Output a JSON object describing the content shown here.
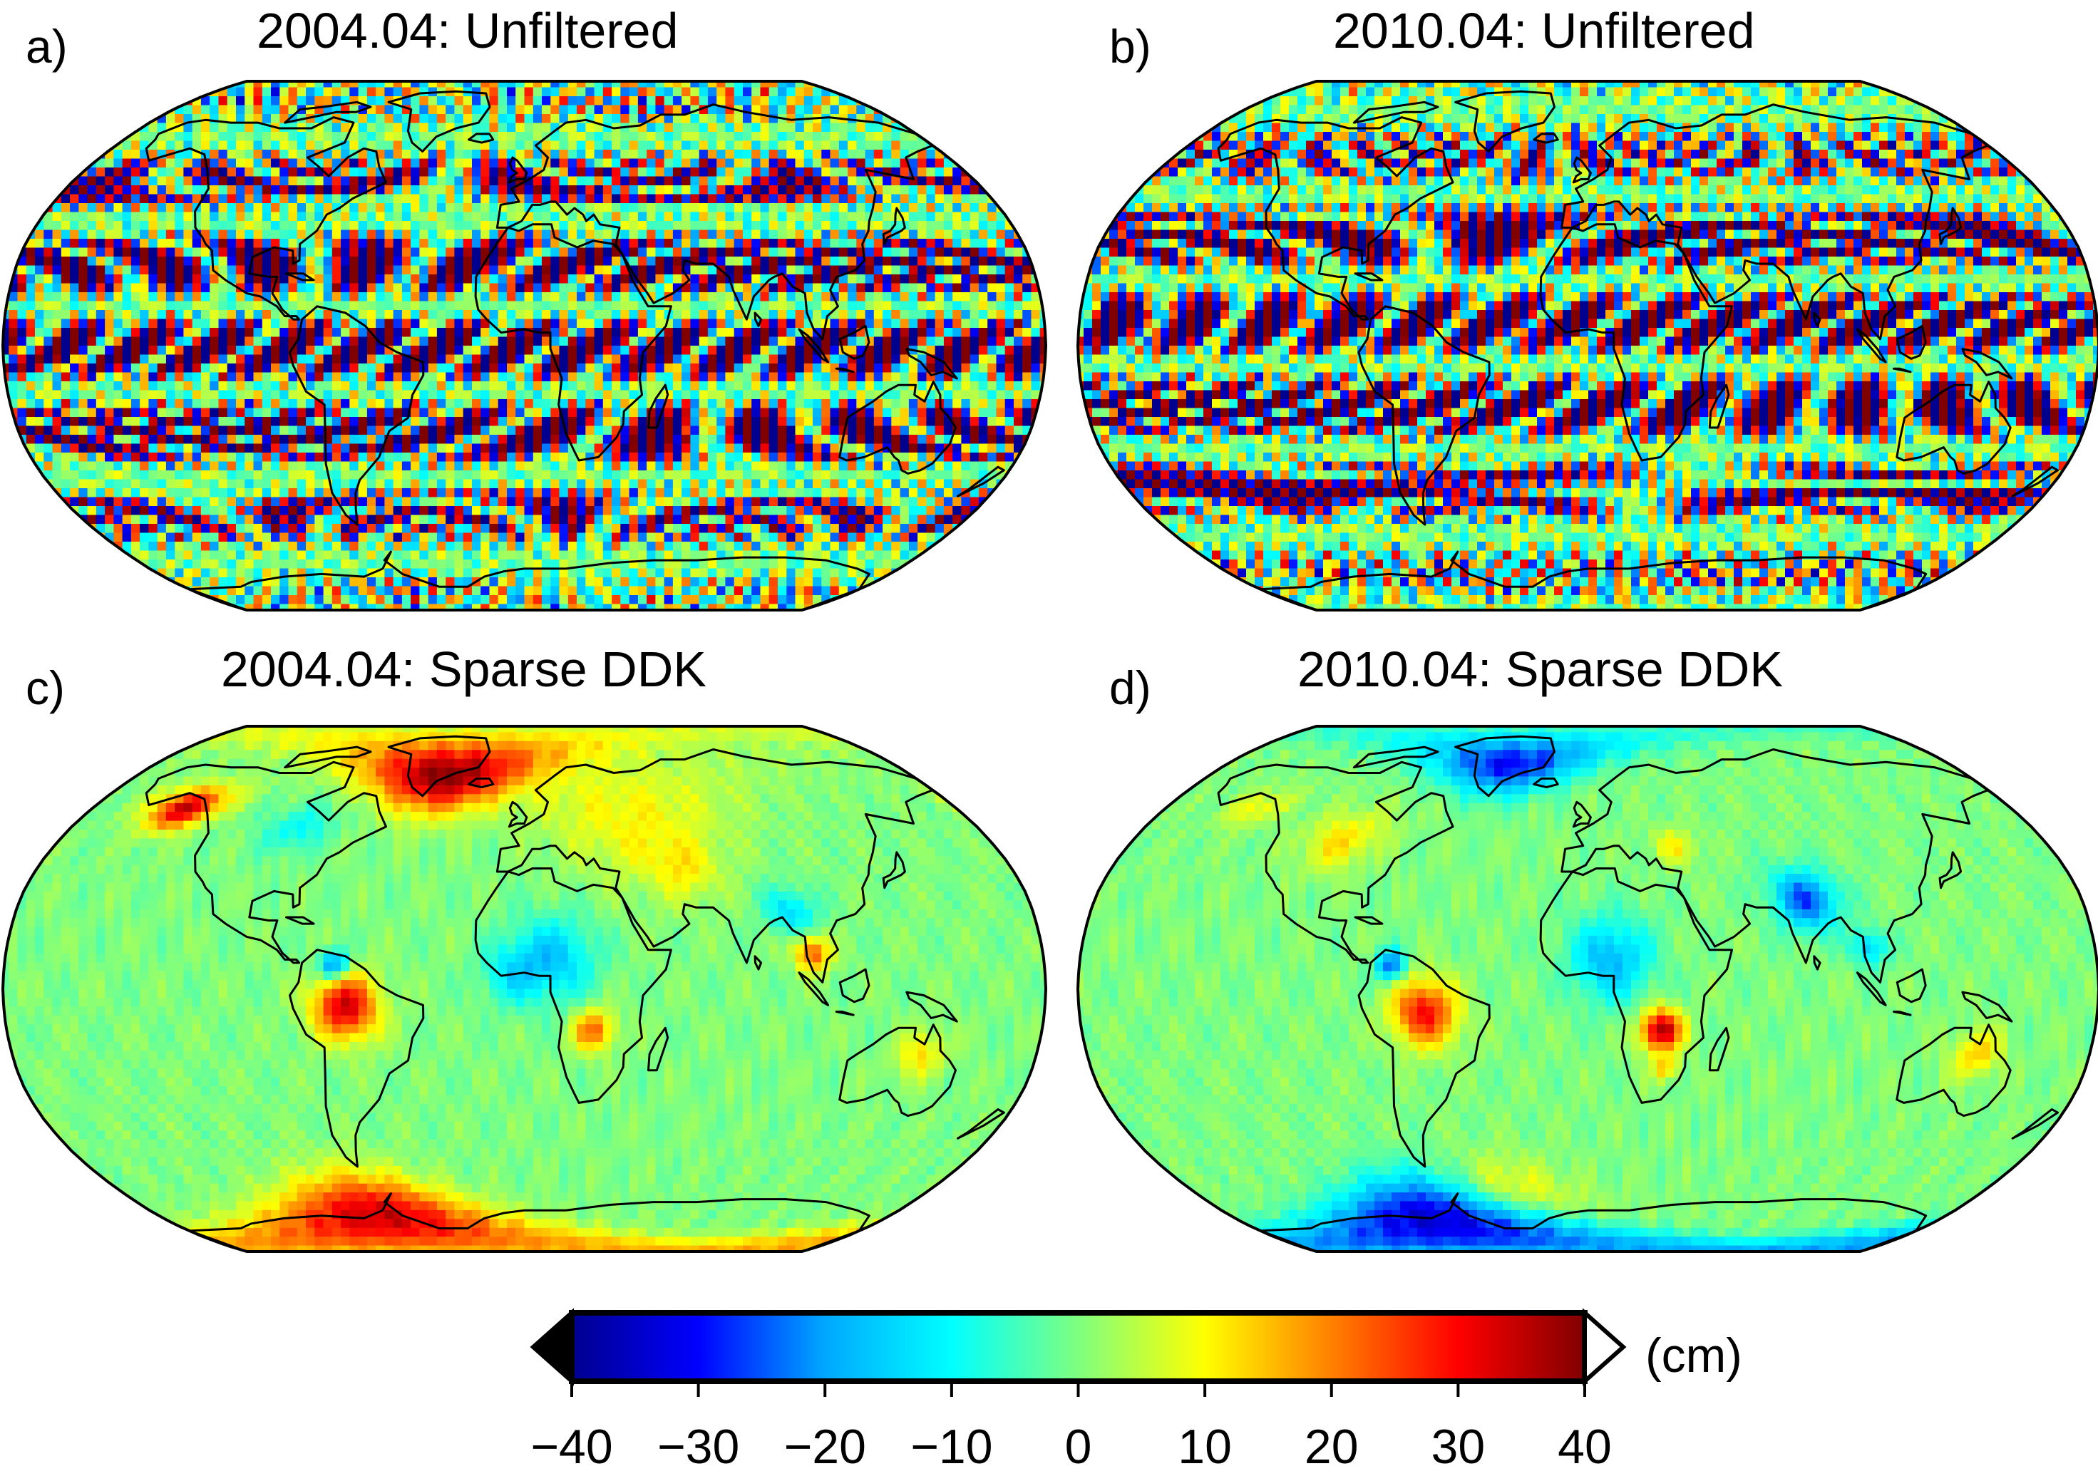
{
  "panels": [
    {
      "letter": "a)",
      "title": "2004.04: Unfiltered",
      "mode": "unfiltered",
      "seed": 3
    },
    {
      "letter": "b)",
      "title": "2010.04: Unfiltered",
      "mode": "unfiltered",
      "seed": 7
    },
    {
      "letter": "c)",
      "title": "2004.04: Sparse DDK",
      "mode": "filtered",
      "seed": 11
    },
    {
      "letter": "d)",
      "title": "2010.04: Sparse DDK",
      "mode": "filtered",
      "seed": 19
    }
  ],
  "projection": "Robinson",
  "colorbar": {
    "min": -40,
    "max": 40,
    "ticks": [
      -40,
      -30,
      -20,
      -10,
      0,
      10,
      20,
      30,
      40
    ],
    "tick_labels": [
      "−40",
      "−30",
      "−20",
      "−10",
      "0",
      "10",
      "20",
      "30",
      "40"
    ],
    "unit": "(cm)",
    "colormap": [
      "#00008f",
      "#0000ff",
      "#00a8ff",
      "#00ffff",
      "#7fff7f",
      "#ffff00",
      "#ff8000",
      "#ff0000",
      "#800000"
    ],
    "under_color": "#000000",
    "over_color": "#ffffff"
  },
  "colors": {
    "coastline": "#000000",
    "map_outline": "#000000",
    "background": "#ffffff"
  }
}
